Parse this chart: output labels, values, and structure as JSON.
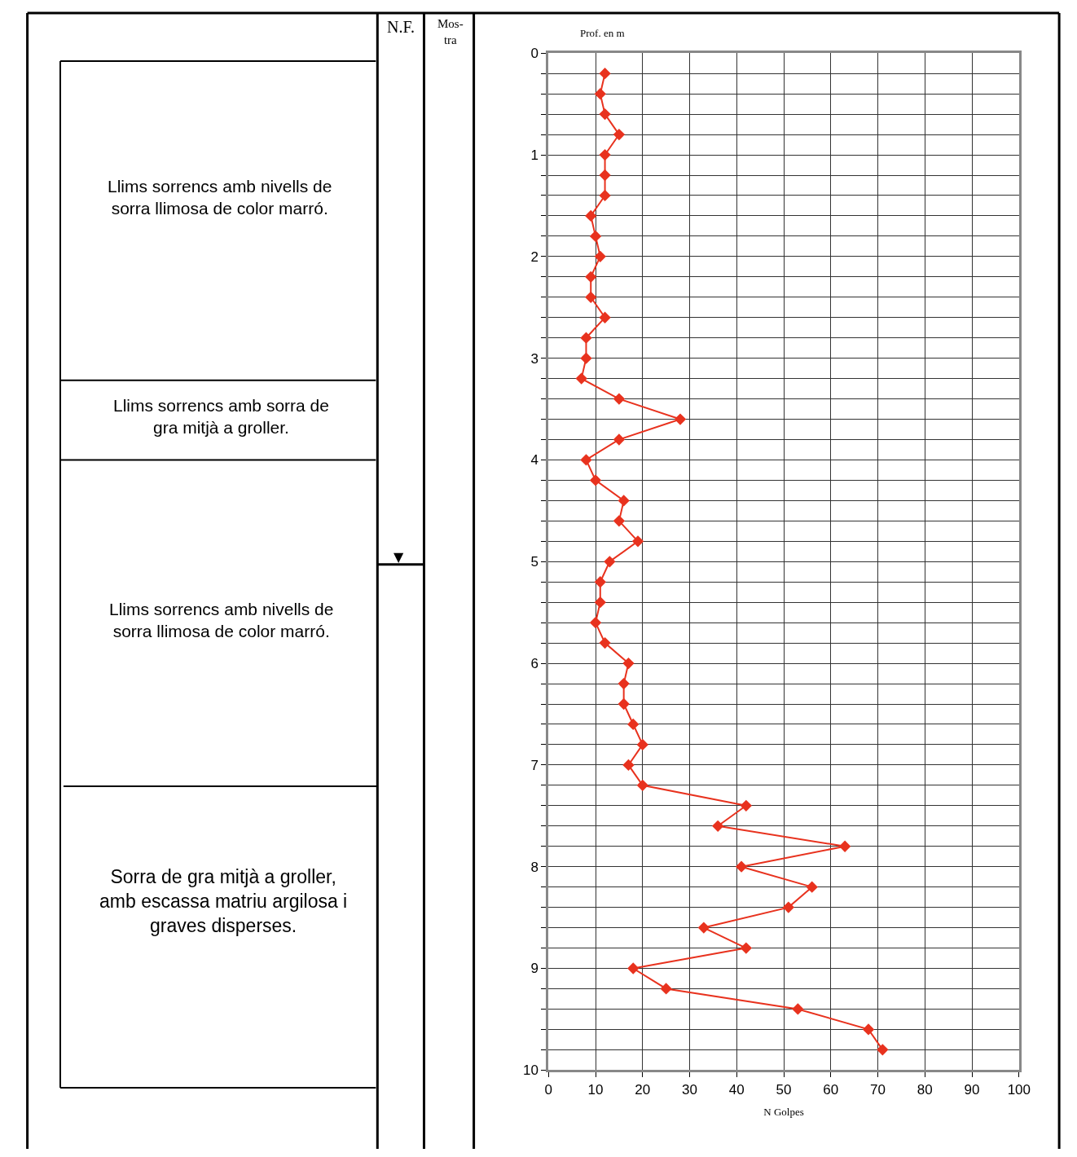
{
  "chart_data": {
    "type": "line",
    "ylabel": "Prof. en m",
    "xlabel": "N Golpes",
    "annotations": [
      "N.F.",
      "Mos-\ntra",
      "▼",
      "Llims sorrencs amb nivells de\nsorra llimosa de color marró.",
      "Llims sorrencs amb sorra de\ngra mitjà a groller.",
      "Llims sorrencs amb nivells de\nsorra llimosa de color marró.",
      "Sorra de gra mitjà a groller,\namb escassa matriu argilosa i\ngraves disperses."
    ],
    "orientation": "horizontal",
    "x": [
      0.2,
      0.4,
      0.6,
      0.8,
      1.0,
      1.2,
      1.4,
      1.6,
      1.8,
      2.0,
      2.2,
      2.4,
      2.6,
      2.8,
      3.0,
      3.2,
      3.4,
      3.6,
      3.8,
      4.0,
      4.2,
      4.4,
      4.6,
      4.8,
      5.0,
      5.2,
      5.4,
      5.6,
      5.8,
      6.0,
      6.2,
      6.4,
      6.6,
      6.8,
      7.0,
      7.2,
      7.4,
      7.6,
      7.8,
      8.0,
      8.2,
      8.4,
      8.6,
      8.8,
      9.0,
      9.2,
      9.4,
      9.6,
      9.8
    ],
    "series": [
      {
        "color": "#e8321e",
        "values": [
          12,
          11,
          12,
          15,
          12,
          12,
          12,
          9,
          10,
          11,
          9,
          9,
          12,
          8,
          8,
          7,
          15,
          28,
          15,
          8,
          10,
          16,
          15,
          19,
          13,
          11,
          11,
          10,
          12,
          17,
          16,
          16,
          18,
          20,
          17,
          20,
          42,
          36,
          63,
          41,
          56,
          51,
          33,
          42,
          18,
          25,
          53,
          68,
          71
        ]
      }
    ],
    "xlim": [
      0,
      100
    ],
    "xticks": [
      0,
      10,
      20,
      30,
      40,
      50,
      60,
      70,
      80,
      90,
      100
    ],
    "ylim": [
      10,
      0
    ],
    "yticks": [
      0,
      {
        "value": 0.2,
        "label": null
      },
      {
        "value": 0.4,
        "label": null
      },
      {
        "value": 0.6,
        "label": null
      },
      {
        "value": 0.8,
        "label": null
      },
      1,
      {
        "value": 1.2,
        "label": null
      },
      {
        "value": 1.4,
        "label": null
      },
      {
        "value": 1.6,
        "label": null
      },
      {
        "value": 1.8,
        "label": null
      },
      2,
      {
        "value": 2.2,
        "label": null
      },
      {
        "value": 2.4,
        "label": null
      },
      {
        "value": 2.6,
        "label": null
      },
      {
        "value": 2.8,
        "label": null
      },
      3,
      {
        "value": 3.2,
        "label": null
      },
      {
        "value": 3.4,
        "label": null
      },
      {
        "value": 3.6,
        "label": null
      },
      {
        "value": 3.8,
        "label": null
      },
      4,
      {
        "value": 4.2,
        "label": null
      },
      {
        "value": 4.4,
        "label": null
      },
      {
        "value": 4.6,
        "label": null
      },
      {
        "value": 4.8,
        "label": null
      },
      5,
      {
        "value": 5.2,
        "label": null
      },
      {
        "value": 5.4,
        "label": null
      },
      {
        "value": 5.6,
        "label": null
      },
      {
        "value": 5.8,
        "label": null
      },
      6,
      {
        "value": 6.2,
        "label": null
      },
      {
        "value": 6.4,
        "label": null
      },
      {
        "value": 6.6,
        "label": null
      },
      {
        "value": 6.8,
        "label": null
      },
      7,
      {
        "value": 7.2,
        "label": null
      },
      {
        "value": 7.4,
        "label": null
      },
      {
        "value": 7.6,
        "label": null
      },
      {
        "value": 7.8,
        "label": null
      },
      8,
      {
        "value": 8.2,
        "label": null
      },
      {
        "value": 8.4,
        "label": null
      },
      {
        "value": 8.6,
        "label": null
      },
      {
        "value": 8.8,
        "label": null
      },
      9,
      {
        "value": 9.2,
        "label": null
      },
      {
        "value": 9.4,
        "label": null
      },
      {
        "value": 9.6,
        "label": null
      },
      {
        "value": 9.8,
        "label": null
      },
      10
    ],
    "grid": true,
    "marker": "diamond",
    "line_style": "solid",
    "legend": false
  }
}
